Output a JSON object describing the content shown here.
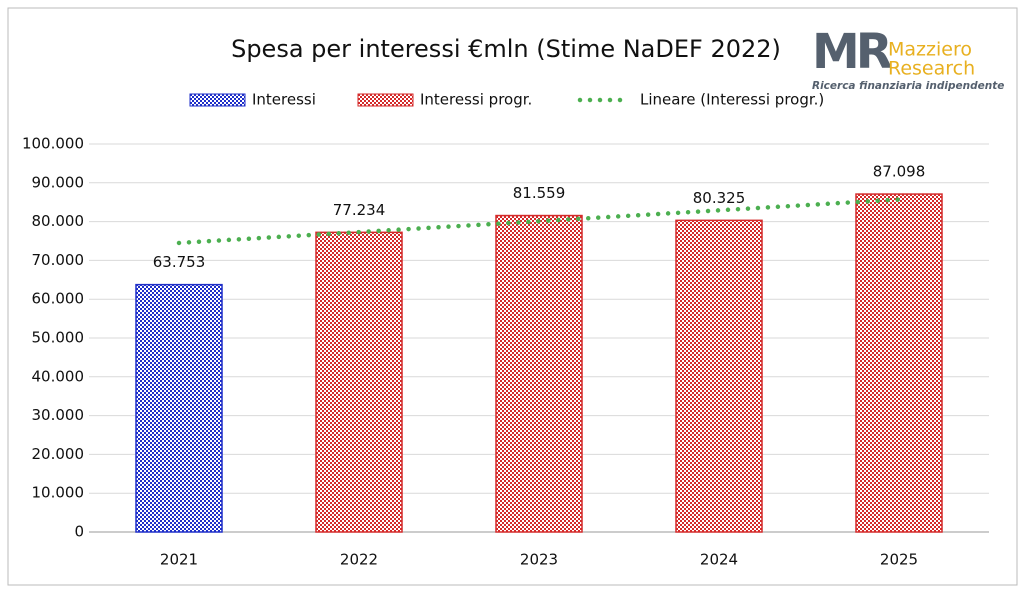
{
  "chart_data": {
    "type": "bar",
    "title": "Spesa per interessi €mln (Stime NaDEF 2022)",
    "categories": [
      "2021",
      "2022",
      "2023",
      "2024",
      "2025"
    ],
    "series": [
      {
        "name": "Interessi",
        "color": "#1f2fc8",
        "values": [
          63753,
          null,
          null,
          null,
          null
        ],
        "value_labels": [
          "63.753",
          null,
          null,
          null,
          null
        ]
      },
      {
        "name": "Interessi progr.",
        "color": "#d42a2a",
        "values": [
          null,
          77234,
          81559,
          80325,
          87098
        ],
        "value_labels": [
          null,
          "77.234",
          "81.559",
          "80.325",
          "87.098"
        ]
      },
      {
        "name": "Lineare (Interessi progr.)",
        "type": "line",
        "color": "#4caf50",
        "values": [
          74500,
          77300,
          80100,
          82900,
          85700
        ]
      }
    ],
    "ylim": [
      0,
      100000
    ],
    "yticks": [
      0,
      {
        "value": 10000,
        "label": "10.000"
      },
      {
        "value": 20000,
        "label": "20.000"
      },
      {
        "value": 30000,
        "label": "30.000"
      },
      {
        "value": 40000,
        "label": "40.000"
      },
      {
        "value": 50000,
        "label": "50.000"
      },
      {
        "value": 60000,
        "label": "60.000"
      },
      {
        "value": 70000,
        "label": "70.000"
      },
      {
        "value": 80000,
        "label": "80.000"
      },
      {
        "value": 90000,
        "label": "90.000"
      },
      {
        "value": 100000,
        "label": "100.000"
      }
    ],
    "grid": true,
    "legend": "top",
    "logo": {
      "mark": "MR",
      "line1": "Mazziero",
      "line2": "Research",
      "tagline": "Ricerca finanziaria indipendente"
    }
  }
}
